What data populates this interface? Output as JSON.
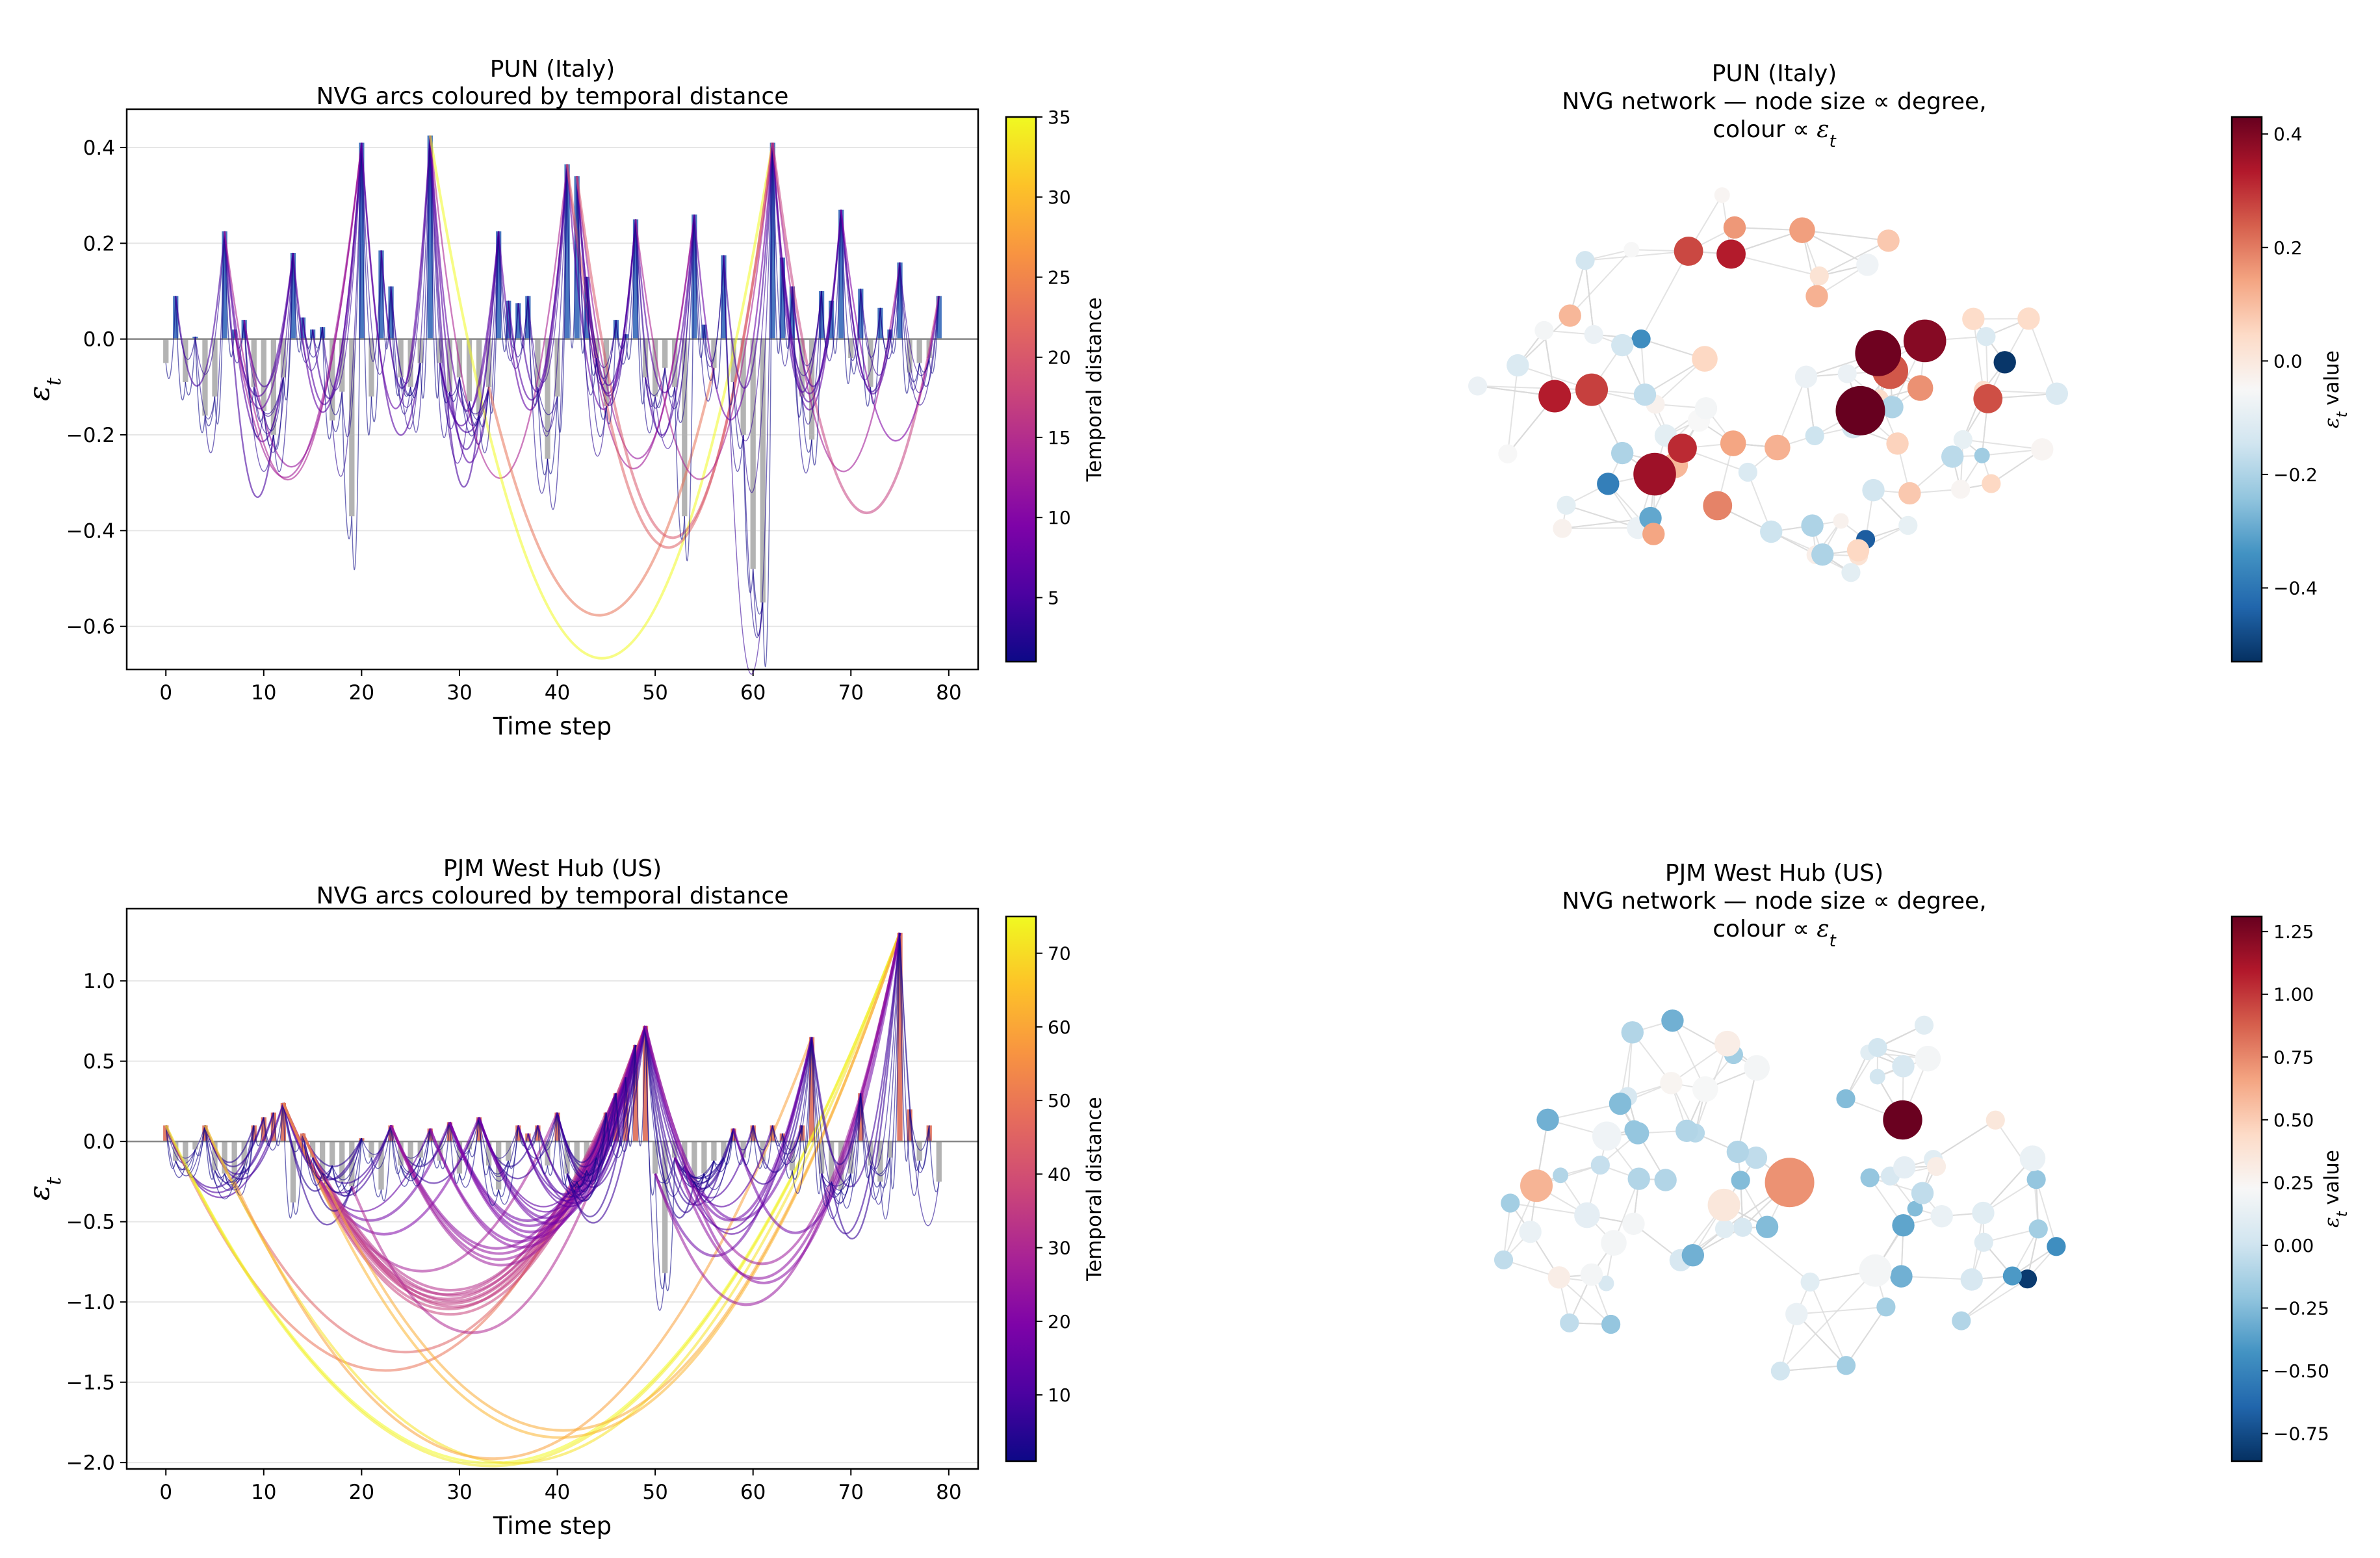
{
  "chart_data": [
    {
      "type": "bar",
      "panel": "top-left",
      "title": "PUN (Italy)",
      "subtitle": "NVG arcs coloured by temporal distance",
      "xlabel": "Time step",
      "ylabel": "ε_t",
      "xlim": [
        -4,
        83
      ],
      "ylim": [
        -0.69,
        0.48
      ],
      "xticks": [
        0,
        10,
        20,
        30,
        40,
        50,
        60,
        70,
        80
      ],
      "yticks": [
        -0.6,
        -0.4,
        -0.2,
        0.0,
        0.2,
        0.4
      ],
      "ytick_labels": [
        "−0.6",
        "−0.4",
        "−0.2",
        "0.0",
        "0.2",
        "0.4"
      ],
      "grid": "horizontal",
      "positive_color": "#4a78c0",
      "negative_color": "#b3b3b3",
      "values": [
        -0.05,
        0.09,
        -0.09,
        0.005,
        -0.16,
        -0.12,
        0.225,
        0.02,
        0.04,
        -0.1,
        -0.15,
        -0.2,
        -0.08,
        0.18,
        0.045,
        0.02,
        0.025,
        -0.17,
        -0.11,
        -0.37,
        0.41,
        -0.12,
        0.185,
        0.11,
        -0.08,
        -0.1,
        -0.05,
        0.425,
        -0.05,
        -0.11,
        -0.08,
        -0.13,
        -0.16,
        -0.1,
        0.225,
        0.08,
        0.075,
        0.09,
        -0.1,
        -0.25,
        -0.12,
        0.365,
        0.34,
        0.13,
        -0.04,
        -0.14,
        0.04,
        0.01,
        0.25,
        -0.08,
        -0.12,
        -0.06,
        -0.1,
        -0.37,
        0.26,
        0.03,
        -0.06,
        0.175,
        -0.09,
        -0.2,
        -0.48,
        -0.55,
        0.41,
        0.17,
        0.11,
        -0.12,
        -0.21,
        0.1,
        0.08,
        0.27,
        -0.04,
        0.105,
        -0.1,
        0.065,
        0.02,
        0.16,
        -0.07,
        -0.05,
        -0.04,
        0.09
      ],
      "colorbar": {
        "label": "Temporal distance",
        "range": [
          1,
          35
        ],
        "ticks": [
          5,
          10,
          15,
          20,
          25,
          30,
          35
        ],
        "colormap": "plasma"
      },
      "highlighted_arcs": [
        {
          "from": 33,
          "to": 56,
          "distance": 23
        },
        {
          "from": 20,
          "to": 27,
          "distance": 7
        },
        {
          "from": 27,
          "to": 62,
          "distance": 35
        }
      ]
    },
    {
      "type": "scatter",
      "panel": "top-right",
      "title": "PUN (Italy)",
      "subtitle_line1": "NVG network — node size ∝ degree,",
      "subtitle_line2": "colour ∝ ε_t",
      "colorbar": {
        "label": "ε_t value",
        "range": [
          -0.53,
          0.43
        ],
        "ticks": [
          -0.4,
          -0.2,
          0.0,
          0.2,
          0.4
        ],
        "tick_labels": [
          "−0.4",
          "−0.2",
          "0.0",
          "0.2",
          "0.4"
        ],
        "colormap": "RdBu_r"
      },
      "nodes": [
        {
          "v": -0.22,
          "d": 4
        },
        {
          "v": -0.05,
          "d": 6
        },
        {
          "v": -0.08,
          "d": 5
        },
        {
          "v": -0.03,
          "d": 5
        },
        {
          "v": 0.04,
          "d": 6
        },
        {
          "v": -0.02,
          "d": 5
        },
        {
          "v": -0.2,
          "d": 6
        },
        {
          "v": -0.12,
          "d": 5
        },
        {
          "v": -0.35,
          "d": 5
        },
        {
          "v": -0.06,
          "d": 6
        },
        {
          "v": -0.05,
          "d": 4
        },
        {
          "v": 0.05,
          "d": 7
        },
        {
          "v": 0.25,
          "d": 10
        },
        {
          "v": 0.11,
          "d": 7
        },
        {
          "v": 0.08,
          "d": 6
        },
        {
          "v": 0.28,
          "d": 9
        },
        {
          "v": -0.1,
          "d": 6
        },
        {
          "v": -0.2,
          "d": 6
        },
        {
          "v": 0.05,
          "d": 5
        },
        {
          "v": -0.03,
          "d": 4
        },
        {
          "v": 0.16,
          "d": 6
        },
        {
          "v": -0.04,
          "d": 4
        },
        {
          "v": -0.2,
          "d": 6
        },
        {
          "v": 0.39,
          "d": 12
        },
        {
          "v": 0.04,
          "d": 5
        },
        {
          "v": 0.12,
          "d": 6
        },
        {
          "v": -0.15,
          "d": 5
        },
        {
          "v": 0.26,
          "d": 8
        },
        {
          "v": -0.05,
          "d": 5
        },
        {
          "v": -0.08,
          "d": 6
        },
        {
          "v": 0.15,
          "d": 7
        },
        {
          "v": 0.05,
          "d": 6
        },
        {
          "v": -0.18,
          "d": 6
        },
        {
          "v": -0.14,
          "d": 6
        },
        {
          "v": 0.12,
          "d": 7
        },
        {
          "v": -0.08,
          "d": 5
        },
        {
          "v": 0.42,
          "d": 13
        },
        {
          "v": -0.12,
          "d": 6
        },
        {
          "v": 0.14,
          "d": 7
        },
        {
          "v": -0.3,
          "d": 6
        },
        {
          "v": -0.17,
          "d": 6
        },
        {
          "v": -0.07,
          "d": 6
        },
        {
          "v": 0.33,
          "d": 9
        },
        {
          "v": -0.12,
          "d": 6
        },
        {
          "v": -0.04,
          "d": 6
        },
        {
          "v": 0.36,
          "d": 12
        },
        {
          "v": 0.33,
          "d": 8
        },
        {
          "v": 0.06,
          "d": 6
        },
        {
          "v": -0.09,
          "d": 5
        },
        {
          "v": 0.43,
          "d": 14
        },
        {
          "v": -0.52,
          "d": 6
        },
        {
          "v": -0.38,
          "d": 6
        },
        {
          "v": 0.03,
          "d": 5
        },
        {
          "v": -0.06,
          "d": 5
        },
        {
          "v": 0.04,
          "d": 6
        },
        {
          "v": 0.11,
          "d": 6
        },
        {
          "v": 0.27,
          "d": 8
        },
        {
          "v": 0.17,
          "d": 7
        },
        {
          "v": 0.02,
          "d": 5
        },
        {
          "v": -0.14,
          "d": 6
        },
        {
          "v": -0.03,
          "d": 5
        },
        {
          "v": 0.31,
          "d": 8
        },
        {
          "v": 0.19,
          "d": 8
        },
        {
          "v": -0.45,
          "d": 5
        },
        {
          "v": -0.2,
          "d": 6
        },
        {
          "v": -0.14,
          "d": 6
        },
        {
          "v": -0.04,
          "d": 5
        },
        {
          "v": 0.14,
          "d": 6
        },
        {
          "v": 0.08,
          "d": 6
        },
        {
          "v": -0.15,
          "d": 6
        },
        {
          "v": -0.08,
          "d": 6
        },
        {
          "v": 0.13,
          "d": 6
        },
        {
          "v": -0.14,
          "d": 5
        },
        {
          "v": -0.1,
          "d": 5
        },
        {
          "v": -0.09,
          "d": 5
        },
        {
          "v": -0.1,
          "d": 5
        },
        {
          "v": -0.12,
          "d": 5
        },
        {
          "v": 0.02,
          "d": 5
        },
        {
          "v": -0.08,
          "d": 5
        },
        {
          "v": -0.05,
          "d": 4
        }
      ]
    },
    {
      "type": "bar",
      "panel": "bottom-left",
      "title": "PJM West Hub (US)",
      "subtitle": "NVG arcs coloured by temporal distance",
      "xlabel": "Time step",
      "ylabel": "ε_t",
      "xlim": [
        -4,
        83
      ],
      "ylim": [
        -2.04,
        1.45
      ],
      "xticks": [
        0,
        10,
        20,
        30,
        40,
        50,
        60,
        70,
        80
      ],
      "yticks": [
        -2.0,
        -1.5,
        -1.0,
        -0.5,
        0.0,
        0.5,
        1.0
      ],
      "ytick_labels": [
        "−2.0",
        "−1.5",
        "−1.0",
        "−0.5",
        "0.0",
        "0.5",
        "1.0"
      ],
      "grid": "horizontal",
      "positive_color": "#e07b68",
      "negative_color": "#b3b3b3",
      "values": [
        0.1,
        -0.12,
        -0.15,
        -0.05,
        0.1,
        -0.18,
        -0.2,
        -0.25,
        -0.15,
        0.1,
        0.15,
        0.18,
        0.24,
        -0.38,
        0.05,
        -0.1,
        -0.2,
        -0.15,
        -0.25,
        -0.28,
        0.02,
        -0.1,
        -0.3,
        0.1,
        -0.15,
        -0.2,
        -0.1,
        0.08,
        -0.12,
        0.12,
        -0.2,
        -0.05,
        0.15,
        -0.15,
        -0.3,
        -0.12,
        0.1,
        0.05,
        0.1,
        -0.15,
        0.18,
        -0.2,
        -0.25,
        -0.18,
        -0.1,
        0.18,
        0.3,
        0.4,
        0.6,
        0.72,
        -0.2,
        -0.82,
        -0.1,
        -0.15,
        -0.25,
        -0.2,
        -0.12,
        -0.1,
        0.08,
        -0.1,
        0.1,
        -0.12,
        0.1,
        0.05,
        -0.18,
        0.1,
        0.65,
        -0.2,
        -0.25,
        -0.3,
        -0.2,
        0.3,
        -0.15,
        -0.25,
        -0.1,
        1.3,
        0.2,
        -0.12,
        0.1,
        -0.25
      ],
      "colorbar": {
        "label": "Temporal distance",
        "range": [
          1,
          75
        ],
        "ticks": [
          10,
          20,
          30,
          40,
          50,
          60,
          70
        ],
        "colormap": "plasma"
      },
      "highlighted_arcs": [
        {
          "from": 0,
          "to": 75,
          "distance": 75
        },
        {
          "from": 2,
          "to": 75,
          "distance": 73
        },
        {
          "from": 4,
          "to": 75,
          "distance": 71
        },
        {
          "from": 7,
          "to": 66,
          "distance": 59
        },
        {
          "from": 12,
          "to": 75,
          "distance": 63
        },
        {
          "from": 4,
          "to": 49,
          "distance": 45
        },
        {
          "from": 12,
          "to": 49,
          "distance": 37
        },
        {
          "from": 19,
          "to": 49,
          "distance": 30
        },
        {
          "from": 49,
          "to": 75,
          "distance": 26
        },
        {
          "from": 53,
          "to": 75,
          "distance": 22
        }
      ]
    },
    {
      "type": "scatter",
      "panel": "bottom-right",
      "title": "PJM West Hub (US)",
      "subtitle_line1": "NVG network — node size ∝ degree,",
      "subtitle_line2": "colour ∝ ε_t",
      "colorbar": {
        "label": "ε_t value",
        "range": [
          -0.86,
          1.31
        ],
        "ticks": [
          -0.75,
          -0.5,
          -0.25,
          0.0,
          0.25,
          0.5,
          0.75,
          1.0,
          1.25
        ],
        "tick_labels": [
          "−0.75",
          "−0.50",
          "−0.25",
          "0.00",
          "0.25",
          "0.50",
          "0.75",
          "1.00",
          "1.25"
        ],
        "colormap": "RdBu_r"
      },
      "nodes": [
        {
          "v": -0.25,
          "d": 4
        },
        {
          "v": -0.2,
          "d": 5
        },
        {
          "v": -0.15,
          "d": 5
        },
        {
          "v": -0.1,
          "d": 4
        },
        {
          "v": -0.05,
          "d": 5
        },
        {
          "v": -0.08,
          "d": 5
        },
        {
          "v": 0.05,
          "d": 4
        },
        {
          "v": 0.1,
          "d": 4
        },
        {
          "v": -0.05,
          "d": 5
        },
        {
          "v": 0.02,
          "d": 5
        },
        {
          "v": -0.03,
          "d": 5
        },
        {
          "v": 0.05,
          "d": 5
        },
        {
          "v": 0.2,
          "d": 6
        },
        {
          "v": 0.25,
          "d": 6
        },
        {
          "v": 0.15,
          "d": 7
        },
        {
          "v": 0.35,
          "d": 9
        },
        {
          "v": 0.22,
          "d": 7
        },
        {
          "v": 0.2,
          "d": 7
        },
        {
          "v": 0.18,
          "d": 8
        },
        {
          "v": 0.12,
          "d": 7
        },
        {
          "v": -0.05,
          "d": 6
        },
        {
          "v": -0.1,
          "d": 6
        },
        {
          "v": 0.05,
          "d": 6
        },
        {
          "v": 0.2,
          "d": 9
        },
        {
          "v": 0.72,
          "d": 14
        },
        {
          "v": -0.05,
          "d": 6
        },
        {
          "v": 0.02,
          "d": 5
        },
        {
          "v": -0.15,
          "d": 5
        },
        {
          "v": 0.1,
          "d": 6
        },
        {
          "v": -0.1,
          "d": 6
        },
        {
          "v": 0.2,
          "d": 7
        },
        {
          "v": 0.05,
          "d": 6
        },
        {
          "v": -0.82,
          "d": 5
        },
        {
          "v": 0.12,
          "d": 6
        },
        {
          "v": -0.2,
          "d": 5
        },
        {
          "v": 0.05,
          "d": 5
        },
        {
          "v": -0.15,
          "d": 5
        },
        {
          "v": 0.3,
          "d": 7
        },
        {
          "v": -0.1,
          "d": 6
        },
        {
          "v": 0.15,
          "d": 6
        },
        {
          "v": 0.6,
          "d": 9
        },
        {
          "v": -0.2,
          "d": 5
        },
        {
          "v": 0.1,
          "d": 5
        },
        {
          "v": -0.15,
          "d": 5
        },
        {
          "v": -0.25,
          "d": 6
        },
        {
          "v": -0.1,
          "d": 6
        },
        {
          "v": 0.05,
          "d": 5
        },
        {
          "v": 0.2,
          "d": 6
        },
        {
          "v": -0.3,
          "d": 6
        },
        {
          "v": 0.1,
          "d": 5
        },
        {
          "v": -0.45,
          "d": 5
        },
        {
          "v": 1.3,
          "d": 11
        },
        {
          "v": 0.08,
          "d": 5
        },
        {
          "v": 0.3,
          "d": 6
        },
        {
          "v": 0.15,
          "d": 6
        },
        {
          "v": 0.05,
          "d": 6
        },
        {
          "v": -0.25,
          "d": 6
        },
        {
          "v": 0.1,
          "d": 5
        },
        {
          "v": 0.2,
          "d": 7
        },
        {
          "v": -0.2,
          "d": 6
        },
        {
          "v": -0.3,
          "d": 6
        },
        {
          "v": 0.15,
          "d": 6
        },
        {
          "v": -0.25,
          "d": 5
        },
        {
          "v": -0.35,
          "d": 6
        },
        {
          "v": 0.35,
          "d": 5
        },
        {
          "v": -0.1,
          "d": 6
        },
        {
          "v": -0.3,
          "d": 6
        },
        {
          "v": -0.25,
          "d": 5
        },
        {
          "v": -0.2,
          "d": 5
        },
        {
          "v": -0.4,
          "d": 5
        },
        {
          "v": 0.3,
          "d": 5
        },
        {
          "v": -0.15,
          "d": 5
        },
        {
          "v": 0.1,
          "d": 5
        },
        {
          "v": -0.3,
          "d": 6
        },
        {
          "v": -0.1,
          "d": 5
        },
        {
          "v": 0.02,
          "d": 4
        }
      ]
    }
  ]
}
